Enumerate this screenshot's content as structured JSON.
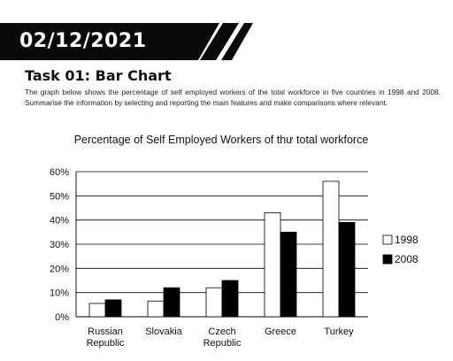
{
  "header": {
    "date": "02/12/2021"
  },
  "task": {
    "title": "Task 01: Bar Chart",
    "description": "The graph below shows the percentage of self employed workers of the total workforce in five countries in 1998 and 2008. Summarise the information by selecting and reporting the main features and make comparisons where relevant."
  },
  "colors": {
    "banner": "#0a0a0a",
    "bar_1998": "#ffffff",
    "bar_2008": "#000000",
    "grid": "#000000"
  },
  "chart_data": {
    "type": "bar",
    "title": "Percentage of Self Employed Workers of thư total workforce",
    "categories": [
      [
        "Russian",
        "Republic"
      ],
      [
        "Slovakia"
      ],
      [
        "Czech",
        "Republic"
      ],
      [
        "Greece"
      ],
      [
        "Turkey"
      ]
    ],
    "series": [
      {
        "name": "1998",
        "values": [
          5.5,
          6.5,
          12,
          43,
          56
        ]
      },
      {
        "name": "2008",
        "values": [
          7,
          12,
          15,
          35,
          39
        ]
      }
    ],
    "y_ticks": [
      "0%",
      "10%",
      "20%",
      "30%",
      "40%",
      "50%",
      "60%"
    ],
    "ylim": [
      0,
      60
    ],
    "grid": true,
    "legend_position": "right"
  }
}
